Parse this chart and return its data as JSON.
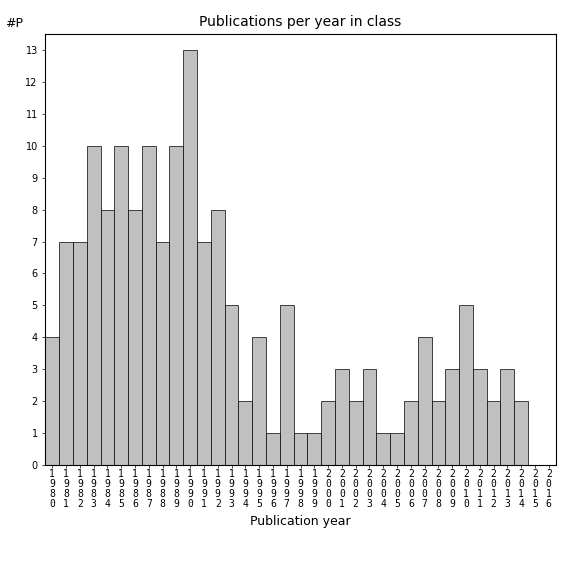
{
  "title": "Publications per year in class",
  "xlabel": "Publication year",
  "ylabel": "#P",
  "years": [
    "1980",
    "1981",
    "1982",
    "1983",
    "1984",
    "1985",
    "1986",
    "1987",
    "1988",
    "1989",
    "1990",
    "1991",
    "1992",
    "1993",
    "1994",
    "1995",
    "1996",
    "1997",
    "1998",
    "1999",
    "2000",
    "2001",
    "2002",
    "2003",
    "2004",
    "2005",
    "2006",
    "2007",
    "2008",
    "2009",
    "2010",
    "2011",
    "2012",
    "2013",
    "2014",
    "2015",
    "2016"
  ],
  "values": [
    4,
    7,
    7,
    10,
    8,
    10,
    8,
    10,
    7,
    10,
    13,
    7,
    8,
    5,
    2,
    4,
    1,
    5,
    1,
    1,
    2,
    3,
    2,
    3,
    1,
    1,
    2,
    4,
    2,
    3,
    5,
    3,
    2,
    3,
    2,
    0,
    0
  ],
  "bar_color": "#c0c0c0",
  "bar_edge_color": "#000000",
  "ylim": [
    0,
    13.5
  ],
  "yticks": [
    0,
    1,
    2,
    3,
    4,
    5,
    6,
    7,
    8,
    9,
    10,
    11,
    12,
    13
  ],
  "bg_color": "#ffffff",
  "tick_label_fontsize": 7,
  "axis_label_fontsize": 9,
  "title_fontsize": 10
}
